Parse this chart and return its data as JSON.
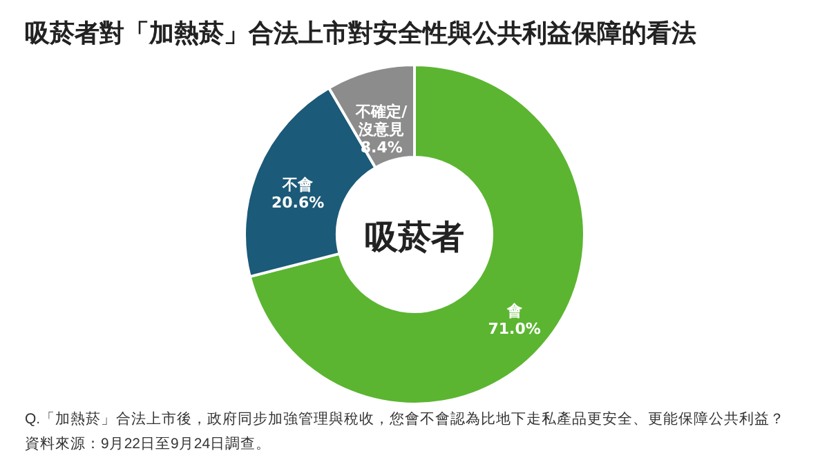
{
  "chart_data": {
    "type": "donut",
    "title": "吸菸者對「加熱菸」合法上市對安全性與公共利益保障的看法",
    "categories": [
      "會",
      "不會",
      "不確定/沒意見"
    ],
    "values": [
      71.0,
      20.6,
      8.4
    ],
    "value_labels": [
      "71.0%",
      "20.6%",
      "8.4%"
    ],
    "colors": [
      "#5bb531",
      "#1b5a78",
      "#8c8c8c"
    ],
    "annotations": [
      "吸菸者",
      "Q.「加熱菸」合法上市後，政府同步加強管理與稅收，您會不會認為比地下走私產品更安全、更能保障公共利益？",
      "資料來源：9月22日至9月24日調查。"
    ]
  }
}
